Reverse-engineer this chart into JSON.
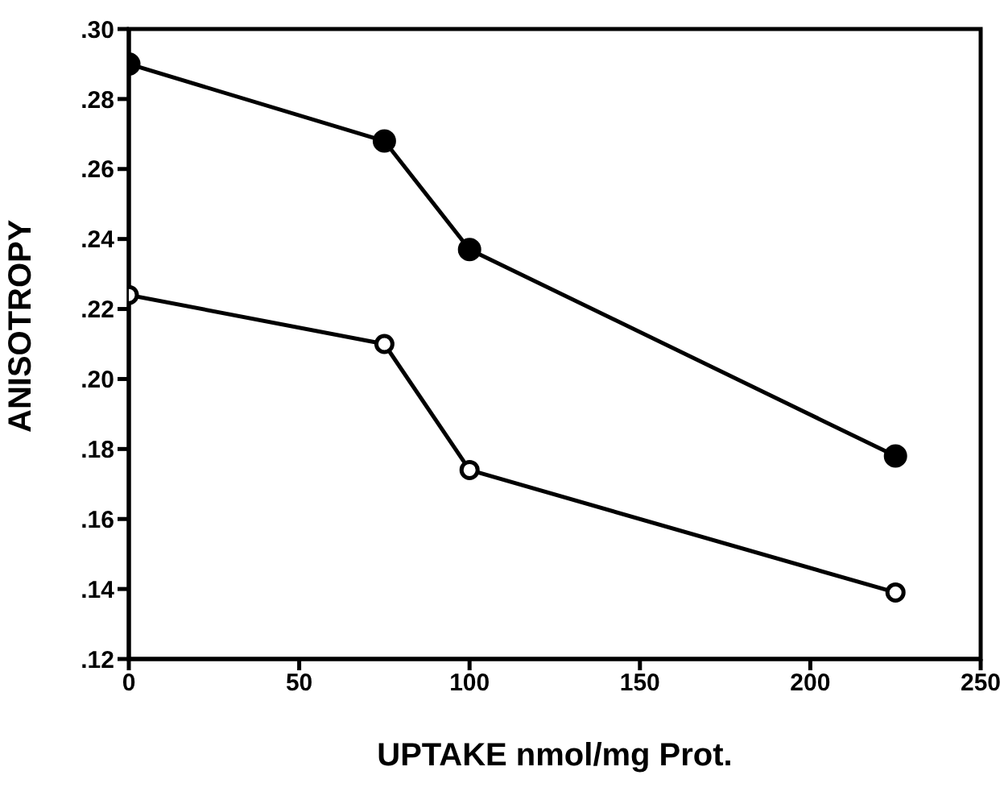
{
  "chart_data": {
    "type": "line",
    "xlabel": "UPTAKE nmol/mg Prot.",
    "ylabel": "ANISOTROPY",
    "x": [
      0,
      75,
      100,
      225
    ],
    "series": [
      {
        "color": "#000000",
        "values": [
          0.29,
          0.268,
          0.237,
          0.178
        ]
      },
      {
        "color": "#000000",
        "values": [
          0.224,
          0.21,
          0.174,
          0.139
        ]
      }
    ],
    "xlim": [
      0,
      250
    ],
    "xticks": [
      0,
      50,
      100,
      150,
      200,
      250
    ],
    "ylim": [
      0.12,
      0.3
    ],
    "yticks": [
      {
        "value": 0.12,
        "label": ".12"
      },
      {
        "value": 0.14,
        "label": ".14"
      },
      {
        "value": 0.16,
        "label": ".16"
      },
      {
        "value": 0.18,
        "label": ".18"
      },
      {
        "value": 0.2,
        "label": ".20"
      },
      {
        "value": 0.22,
        "label": ".22"
      },
      {
        "value": 0.24,
        "label": ".24"
      },
      {
        "value": 0.26,
        "label": ".26"
      },
      {
        "value": 0.28,
        "label": ".28"
      },
      {
        "value": 0.3,
        "label": ".30"
      }
    ],
    "grid": false,
    "marker": "circle",
    "line_style": "solid"
  }
}
